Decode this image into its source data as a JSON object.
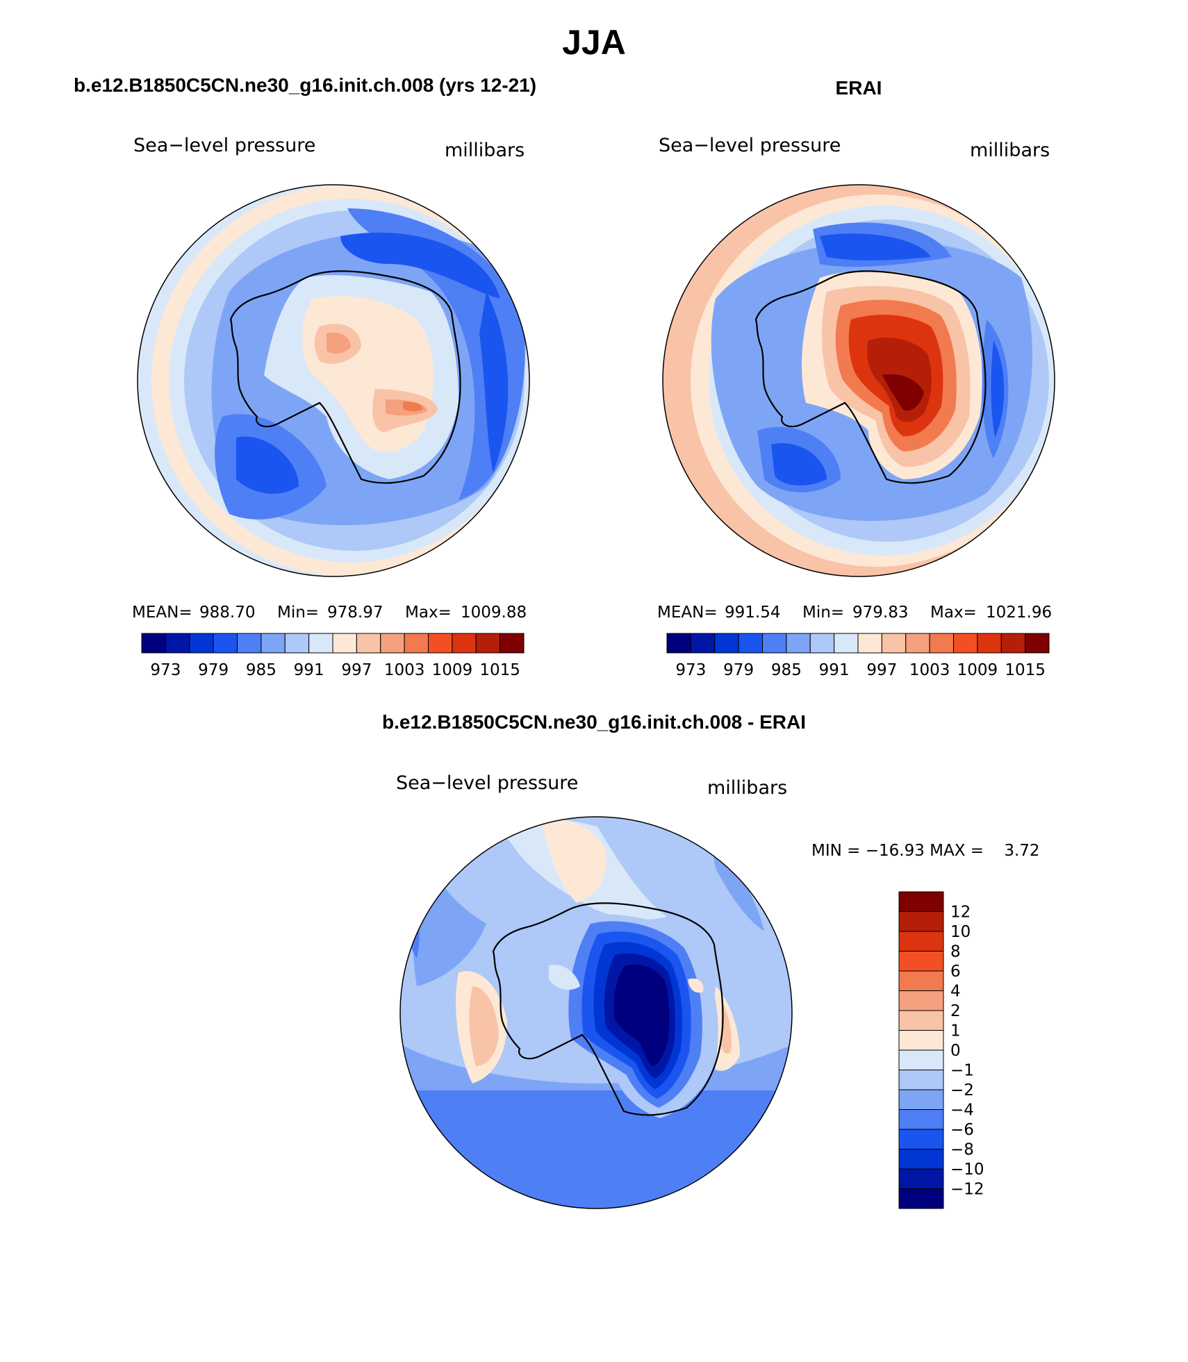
{
  "figure": {
    "season_title": "JJA",
    "panels": [
      {
        "id": "model",
        "title": "b.e12.B1850C5CN.ne30_g16.init.ch.008 (yrs 12-21)",
        "left_label": "Sea−level pressure",
        "right_label": "millibars",
        "stats": {
          "mean_label": "MEAN=",
          "mean": "988.70",
          "min_label": "Min=",
          "min": "978.97",
          "max_label": "Max=",
          "max": "1009.88"
        }
      },
      {
        "id": "obs",
        "title": "ERAI",
        "left_label": "Sea−level pressure",
        "right_label": "millibars",
        "stats": {
          "mean_label": "MEAN=",
          "mean": "991.54",
          "min_label": "Min=",
          "min": "979.83",
          "max_label": "Max=",
          "max": "1021.96"
        }
      },
      {
        "id": "diff",
        "title": "b.e12.B1850C5CN.ne30_g16.init.ch.008 - ERAI",
        "left_label": "Sea−level pressure",
        "right_label": "millibars",
        "minmax_text": "MIN = −16.93 MAX =    3.72"
      }
    ],
    "abs_colorbar": {
      "colors": [
        "#00007f",
        "#0016a6",
        "#0037d4",
        "#1b55f0",
        "#4f7ff5",
        "#7ea5f5",
        "#aec8f7",
        "#d9e8f9",
        "#fde8d6",
        "#f9c3a8",
        "#f5a07e",
        "#f27a4f",
        "#f25024",
        "#dd3410",
        "#b51f08",
        "#7f0000"
      ],
      "tick_labels": [
        "973",
        "979",
        "985",
        "991",
        "997",
        "1003",
        "1009",
        "1015"
      ]
    },
    "diff_colorbar": {
      "colors": [
        "#7f0000",
        "#b51f08",
        "#dd3410",
        "#f25024",
        "#f27a4f",
        "#f5a07e",
        "#f9c3a8",
        "#fde8d6",
        "#d9e8f9",
        "#aec8f7",
        "#7ea5f5",
        "#4f7ff5",
        "#1b55f0",
        "#0037d4",
        "#0016a6",
        "#00007f"
      ],
      "tick_labels": [
        "12",
        "10",
        "8",
        "6",
        "4",
        "2",
        "1",
        "0",
        "−1",
        "−2",
        "−4",
        "−6",
        "−8",
        "−10",
        "−12"
      ]
    }
  }
}
